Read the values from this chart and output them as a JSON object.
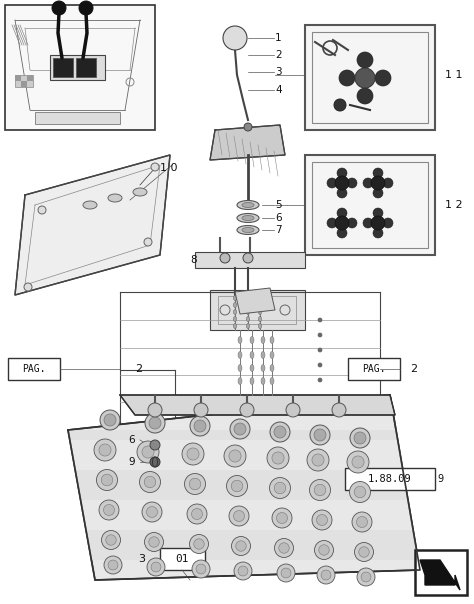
{
  "bg_color": "#ffffff",
  "dark": "#111111",
  "mid": "#555555",
  "light": "#aaaaaa",
  "fig_width": 4.74,
  "fig_height": 6.04,
  "dpi": 100,
  "pag_label": "PAG.",
  "pag_num": "2",
  "part_number": "1.88.09",
  "item_01_text": "01",
  "item_3_text": "3",
  "item_6_text": "6",
  "item_9_text": "9"
}
